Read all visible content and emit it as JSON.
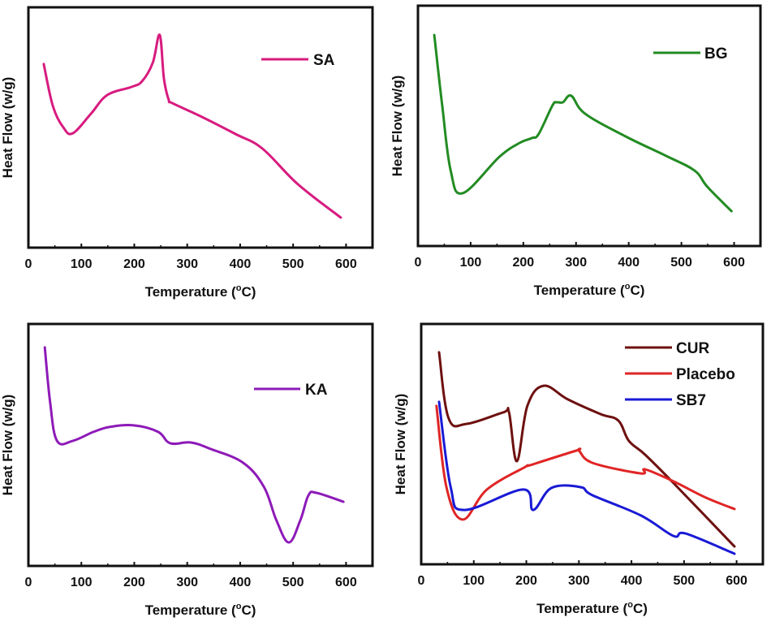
{
  "figure": {
    "description": "DSC thermograms, four panels"
  },
  "chart_data": [
    {
      "type": "line",
      "panel": "top-left",
      "title": "",
      "xlabel": "Temperature (°C)",
      "xlabel_main": "Temperature (",
      "xlabel_sup": "o",
      "xlabel_end": "C)",
      "ylabel": "Heat Flow (w/g)",
      "xlim": [
        0,
        650
      ],
      "ylim": [
        0,
        100
      ],
      "y_units": "arbitrary (no y tick labels shown)",
      "xticks": [
        0,
        100,
        200,
        300,
        400,
        500,
        600
      ],
      "xtick_labels": [
        "0",
        "100",
        "200",
        "300",
        "400",
        "500",
        "600"
      ],
      "minor_xticks": [
        50,
        150,
        250,
        350,
        450,
        550,
        650
      ],
      "grid": false,
      "legend_position": "top-right",
      "series": [
        {
          "name": "SA",
          "color": "#d81b7f",
          "x": [
            29,
            46,
            66,
            84,
            118,
            149,
            195,
            215,
            235,
            248,
            256,
            265,
            272,
            325,
            391,
            442,
            509,
            590
          ],
          "y": [
            76.4,
            59.1,
            50.0,
            47.6,
            55.7,
            63.5,
            66.9,
            69.3,
            77.0,
            88.5,
            70.3,
            61.5,
            60.1,
            54.7,
            47.3,
            41.2,
            26.4,
            12.5
          ]
        }
      ]
    },
    {
      "type": "line",
      "panel": "top-right",
      "title": "",
      "xlabel": "Temperature (°C)",
      "xlabel_main": "Temperature (",
      "xlabel_sup": "o",
      "xlabel_end": "C)",
      "ylabel": "Heat Flow (w/g)",
      "xlim": [
        0,
        650
      ],
      "ylim": [
        0,
        100
      ],
      "y_units": "arbitrary (no y tick labels shown)",
      "xticks": [
        0,
        100,
        200,
        300,
        400,
        500,
        600
      ],
      "xtick_labels": [
        "0",
        "100",
        "200",
        "300",
        "400",
        "500",
        "600"
      ],
      "minor_xticks": [
        50,
        150,
        250,
        350,
        450,
        550,
        650
      ],
      "grid": false,
      "legend_position": "top-right",
      "series": [
        {
          "name": "BG",
          "color": "#228b22",
          "x": [
            31,
            46,
            62,
            85,
            155,
            193,
            216,
            229,
            255,
            263,
            275,
            291,
            317,
            394,
            471,
            525,
            549,
            595
          ],
          "y": [
            87.8,
            58.4,
            31.4,
            22.0,
            37.2,
            42.9,
            44.9,
            46.6,
            58.4,
            59.8,
            59.8,
            62.5,
            55.1,
            45.6,
            37.5,
            31.4,
            24.7,
            14.5
          ]
        }
      ]
    },
    {
      "type": "line",
      "panel": "bottom-left",
      "title": "",
      "xlabel": "Temperature (°C)",
      "xlabel_main": "Temperature (",
      "xlabel_sup": "o",
      "xlabel_end": "C)",
      "ylabel": "Heat Flow (w/g)",
      "xlim": [
        0,
        650
      ],
      "ylim": [
        0,
        100
      ],
      "y_units": "arbitrary (no y tick labels shown)",
      "xticks": [
        0,
        100,
        200,
        300,
        400,
        500,
        600
      ],
      "xtick_labels": [
        "0",
        "100",
        "200",
        "300",
        "400",
        "500",
        "600"
      ],
      "minor_xticks": [
        50,
        150,
        250,
        350,
        450,
        550,
        650
      ],
      "grid": false,
      "legend_position": "upper-right",
      "series": [
        {
          "name": "KA",
          "color": "#8e1ab8",
          "x": [
            31,
            41,
            54,
            84,
            123,
            153,
            199,
            245,
            268,
            307,
            345,
            406,
            445,
            468,
            492,
            514,
            529,
            544,
            595
          ],
          "y": [
            90.3,
            67.8,
            51.7,
            51.7,
            55.4,
            57.4,
            58.1,
            55.4,
            50.7,
            51.0,
            48.3,
            42.6,
            32.6,
            19.1,
            9.7,
            19.1,
            29.2,
            30.2,
            26.5
          ]
        }
      ]
    },
    {
      "type": "line",
      "panel": "bottom-right",
      "title": "",
      "xlabel": "Temperature (°C)",
      "xlabel_main": "Temperature (",
      "xlabel_sup": "o",
      "xlabel_end": "C)",
      "ylabel": "Heat Flow (w/g)",
      "xlim": [
        0,
        650
      ],
      "ylim": [
        0,
        100
      ],
      "y_units": "arbitrary (no y tick labels shown)",
      "xticks": [
        0,
        100,
        200,
        300,
        400,
        500,
        600
      ],
      "xtick_labels": [
        "0",
        "100",
        "200",
        "300",
        "400",
        "500",
        "600"
      ],
      "minor_xticks": [
        50,
        150,
        250,
        350,
        450,
        550,
        650
      ],
      "grid": false,
      "legend_position": "top-right",
      "series": [
        {
          "name": "CUR",
          "color": "#6e1010",
          "x": [
            34,
            52,
            86,
            156,
            167,
            182,
            202,
            233,
            279,
            341,
            375,
            395,
            426,
            480,
            596
          ],
          "y": [
            88.2,
            60.8,
            58.4,
            63.2,
            63.2,
            42.9,
            65.9,
            74.3,
            68.6,
            62.5,
            59.8,
            51.4,
            45.6,
            33.8,
            7.4
          ]
        },
        {
          "name": "Placebo",
          "color": "#e02525",
          "x": [
            29,
            48,
            79,
            125,
            198,
            207,
            295,
            300,
            326,
            418,
            426,
            480,
            542,
            596
          ],
          "y": [
            65.9,
            32.1,
            18.6,
            31.1,
            40.5,
            41.2,
            47.3,
            47.3,
            42.2,
            37.8,
            39.5,
            34.5,
            27.7,
            23.0
          ]
        },
        {
          "name": "SB7",
          "color": "#1a1ad6",
          "x": [
            34,
            56,
            82,
            194,
            213,
            248,
            303,
            326,
            418,
            480,
            503,
            596
          ],
          "y": [
            67.6,
            32.1,
            22.6,
            31.1,
            22.6,
            31.8,
            32.1,
            28.7,
            20.3,
            11.8,
            12.8,
            4.4
          ]
        }
      ]
    }
  ]
}
